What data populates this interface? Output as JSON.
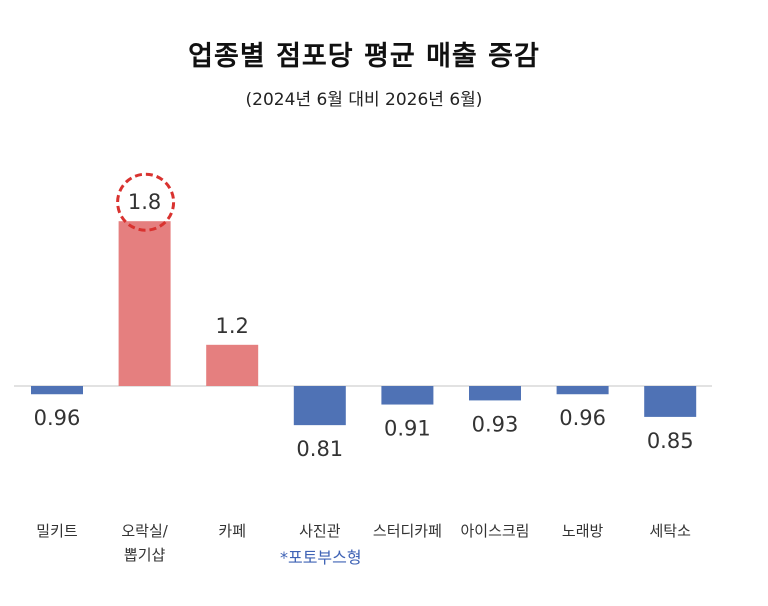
{
  "chart_data": {
    "type": "bar",
    "title": "업종별 점포당 평균 매출 증감",
    "subtitle": "(2024년 6월 대비 2026년 6월)",
    "baseline": 1.0,
    "categories": [
      "밀키트",
      "오락실/뽑기샵",
      "카페",
      "사진관",
      "스터디카페",
      "아이스크림",
      "노래방",
      "세탁소"
    ],
    "category_lines": [
      [
        "밀키트"
      ],
      [
        "오락실/",
        "뽑기샵"
      ],
      [
        "카페"
      ],
      [
        "사진관"
      ],
      [
        "스터디카페"
      ],
      [
        "아이스크림"
      ],
      [
        "노래방"
      ],
      [
        "세탁소"
      ]
    ],
    "values": [
      0.96,
      1.8,
      1.2,
      0.81,
      0.91,
      0.93,
      0.96,
      0.85
    ],
    "value_labels": [
      "0.96",
      "1.8",
      "1.2",
      "0.81",
      "0.91",
      "0.93",
      "0.96",
      "0.85"
    ],
    "highlighted_index": 1,
    "annotations": [
      {
        "category": "사진관",
        "text": "*포토부스형"
      }
    ],
    "colors": {
      "increase": "#e57f7f",
      "decrease": "#4f72b5",
      "highlight_circle": "#d9322f",
      "axis": "#d9d9d9",
      "note": "#3f63b5"
    }
  }
}
